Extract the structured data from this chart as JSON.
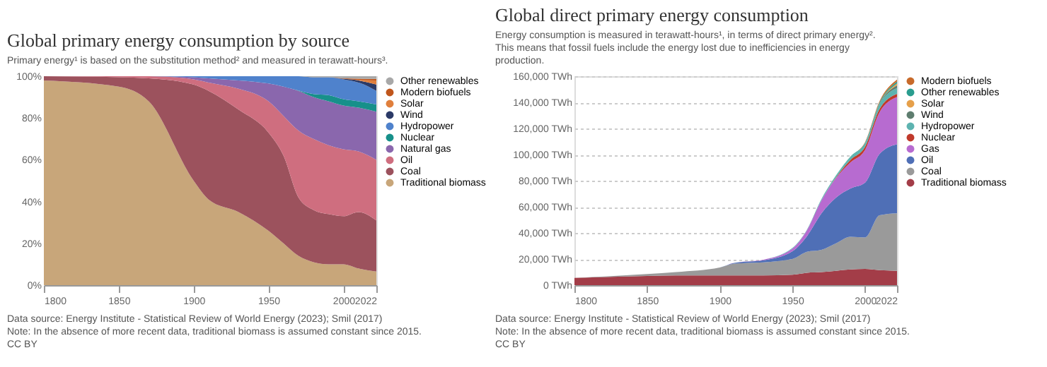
{
  "chart_data": [
    {
      "type": "area",
      "stacked": true,
      "title": "Global primary energy consumption by source",
      "subtitle": "Primary energy¹ is based on the substitution method² and measured in terawatt-hours³.",
      "x": [
        1800,
        1850,
        1870,
        1900,
        1910,
        1930,
        1950,
        1960,
        1970,
        1980,
        1990,
        2000,
        2010,
        2022
      ],
      "xlim": [
        1800,
        2022
      ],
      "xticks": [
        1800,
        1850,
        1900,
        1950,
        2000,
        2022
      ],
      "ylim": [
        0,
        100
      ],
      "yticks": [
        {
          "value": 0,
          "label": "0%"
        },
        {
          "value": 20,
          "label": "20%"
        },
        {
          "value": 40,
          "label": "40%"
        },
        {
          "value": 60,
          "label": "60%"
        },
        {
          "value": 80,
          "label": "80%"
        },
        {
          "value": 100,
          "label": "100%"
        }
      ],
      "grid": false,
      "legend": "right",
      "series": [
        {
          "name": "Traditional biomass",
          "color": "#c8a67a",
          "values": [
            98,
            95,
            88,
            50,
            41,
            35,
            26,
            20,
            14,
            11,
            10,
            10,
            8,
            6.5
          ]
        },
        {
          "name": "Coal",
          "color": "#9c525d",
          "values": [
            2,
            4.5,
            11,
            46,
            52,
            49,
            47,
            42,
            28,
            25,
            24,
            23,
            27,
            24.5
          ]
        },
        {
          "name": "Oil",
          "color": "#cf6e7f",
          "values": [
            0,
            0.5,
            1,
            2.5,
            4,
            10,
            15,
            19,
            32,
            34,
            33,
            32,
            29,
            29
          ]
        },
        {
          "name": "Natural gas",
          "color": "#8a67ad",
          "values": [
            0,
            0,
            0,
            1,
            2,
            4,
            8.5,
            14,
            19,
            20,
            21,
            21,
            21,
            23
          ]
        },
        {
          "name": "Nuclear",
          "color": "#17908a",
          "values": [
            0,
            0,
            0,
            0,
            0,
            0,
            0,
            0,
            0.2,
            1.5,
            3,
            3,
            3,
            3.5
          ]
        },
        {
          "name": "Hydropower",
          "color": "#4f82cc",
          "values": [
            0,
            0,
            0,
            0.5,
            1,
            2,
            3.5,
            5,
            6.8,
            8,
            8.5,
            9.5,
            9,
            6.5
          ]
        },
        {
          "name": "Wind",
          "color": "#2b3a67",
          "values": [
            0,
            0,
            0,
            0,
            0,
            0,
            0,
            0,
            0,
            0,
            0,
            0.3,
            1,
            3
          ]
        },
        {
          "name": "Solar",
          "color": "#e07f3c",
          "values": [
            0,
            0,
            0,
            0,
            0,
            0,
            0,
            0,
            0,
            0,
            0,
            0,
            0.2,
            2
          ]
        },
        {
          "name": "Modern biofuels",
          "color": "#c0561c",
          "values": [
            0,
            0,
            0,
            0,
            0,
            0,
            0,
            0,
            0,
            0,
            0,
            0.2,
            0.6,
            0.7
          ]
        },
        {
          "name": "Other renewables",
          "color": "#a8a8a8",
          "values": [
            0,
            0,
            0,
            0,
            0,
            0,
            0,
            0,
            0,
            0.5,
            0.5,
            1,
            1.2,
            1.3
          ]
        }
      ],
      "annotations": [
        "Data source: Energy Institute - Statistical Review of World Energy (2023); Smil (2017)",
        "Note: In the absence of more recent data, traditional biomass is assumed constant since 2015.",
        "CC BY"
      ]
    },
    {
      "type": "area",
      "stacked": true,
      "title": "Global direct primary energy consumption",
      "subtitle": "Energy consumption is measured in terawatt-hours¹, in terms of direct primary energy². This means that fossil fuels include the energy lost due to inefficiencies in energy production.",
      "x": [
        1800,
        1850,
        1870,
        1900,
        1910,
        1930,
        1950,
        1960,
        1970,
        1980,
        1990,
        2000,
        2010,
        2022
      ],
      "xlim": [
        1800,
        2022
      ],
      "xticks": [
        1800,
        1850,
        1900,
        1950,
        2000,
        2022
      ],
      "ylim": [
        0,
        160000
      ],
      "yticks": [
        {
          "value": 0,
          "label": "0 TWh"
        },
        {
          "value": 20000,
          "label": "20,000 TWh"
        },
        {
          "value": 40000,
          "label": "40,000 TWh"
        },
        {
          "value": 60000,
          "label": "60,000 TWh"
        },
        {
          "value": 80000,
          "label": "80,000 TWh"
        },
        {
          "value": 100000,
          "label": "100,000 TWh"
        },
        {
          "value": 120000,
          "label": "120,000 TWh"
        },
        {
          "value": 140000,
          "label": "140,000 TWh"
        },
        {
          "value": 160000,
          "label": "160,000 TWh"
        }
      ],
      "grid": "y",
      "legend": "right",
      "series": [
        {
          "name": "Traditional biomass",
          "color": "#a33d48",
          "values": [
            5500,
            7000,
            7500,
            7500,
            7500,
            7500,
            8000,
            9500,
            10000,
            11000,
            12000,
            12500,
            11500,
            11000
          ]
        },
        {
          "name": "Coal",
          "color": "#9a9a9a",
          "values": [
            0,
            1500,
            2500,
            6000,
            9000,
            10000,
            12000,
            16000,
            17000,
            21000,
            25000,
            24000,
            42000,
            44000
          ]
        },
        {
          "name": "Oil",
          "color": "#4f6fb6",
          "values": [
            0,
            0,
            0,
            0,
            500,
            1500,
            6000,
            12000,
            28000,
            35000,
            37000,
            42000,
            47000,
            53000
          ]
        },
        {
          "name": "Gas",
          "color": "#b76bd0",
          "values": [
            0,
            0,
            0,
            0,
            0,
            500,
            2000,
            4500,
            10000,
            15000,
            20000,
            25000,
            32000,
            36000
          ]
        },
        {
          "name": "Nuclear",
          "color": "#c0392b",
          "values": [
            0,
            0,
            0,
            0,
            0,
            0,
            0,
            0,
            0,
            500,
            2000,
            2500,
            2500,
            2500
          ]
        },
        {
          "name": "Hydropower",
          "color": "#5db3b0",
          "values": [
            0,
            0,
            0,
            0,
            0,
            0,
            500,
            500,
            1000,
            1500,
            2000,
            2500,
            3500,
            4500
          ]
        },
        {
          "name": "Wind",
          "color": "#5e7d6f",
          "values": [
            0,
            0,
            0,
            0,
            0,
            0,
            0,
            0,
            0,
            0,
            0,
            0,
            500,
            2000
          ]
        },
        {
          "name": "Solar",
          "color": "#e6a04a",
          "values": [
            0,
            0,
            0,
            0,
            0,
            0,
            0,
            0,
            0,
            0,
            0,
            0,
            0,
            1500
          ]
        },
        {
          "name": "Other renewables",
          "color": "#2a9d8f",
          "values": [
            0,
            0,
            0,
            0,
            0,
            0,
            0,
            0,
            0,
            0,
            500,
            500,
            1000,
            1500
          ]
        },
        {
          "name": "Modern biofuels",
          "color": "#c86a2a",
          "values": [
            0,
            0,
            0,
            0,
            0,
            0,
            0,
            0,
            0,
            0,
            0,
            500,
            1000,
            1500
          ]
        }
      ],
      "annotations": [
        "Data source: Energy Institute - Statistical Review of World Energy (2023); Smil (2017)",
        "Note: In the absence of more recent data, traditional biomass is assumed constant since 2015.",
        "CC BY"
      ]
    }
  ]
}
